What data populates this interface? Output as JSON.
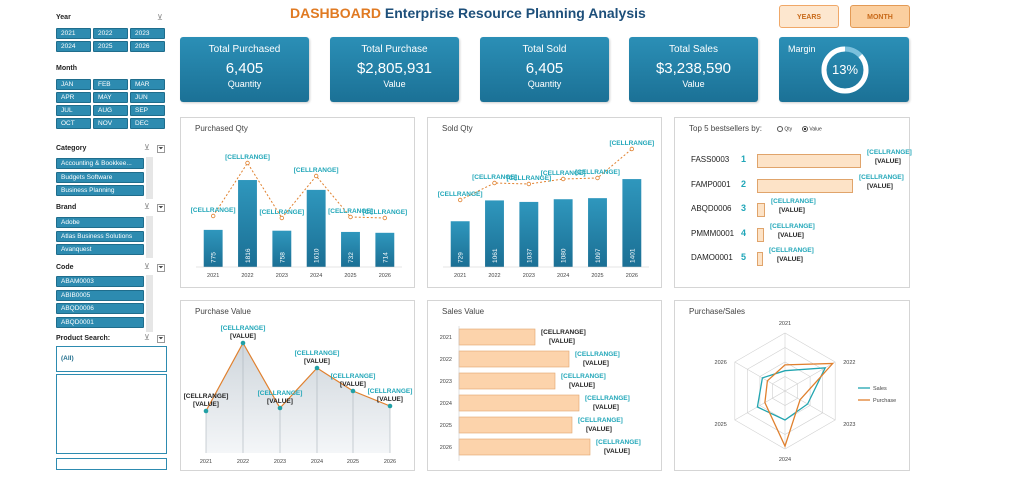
{
  "header": {
    "brand": "DASHBOARD",
    "subtitle": "Enterprise Resource Planning Analysis",
    "years_button": "YEARS",
    "month_button": "MONTH"
  },
  "slicers": {
    "year": {
      "title": "Year",
      "items": [
        "2021",
        "2022",
        "2023",
        "2024",
        "2025",
        "2026"
      ]
    },
    "month": {
      "title": "Month",
      "items": [
        "JAN",
        "FEB",
        "MAR",
        "APR",
        "MAY",
        "JUN",
        "JUL",
        "AUG",
        "SEP",
        "OCT",
        "NOV",
        "DEC"
      ]
    },
    "category": {
      "title": "Category",
      "items": [
        "Accounting & Bookkee...",
        "Budgets Software",
        "Business Planning"
      ]
    },
    "brand": {
      "title": "Brand",
      "items": [
        "Adobe",
        "Atlas Business Solutions",
        "Avanquest"
      ]
    },
    "code": {
      "title": "Code",
      "items": [
        "ABAM0003",
        "ABIB0005",
        "ABQD0006",
        "ABQD0001"
      ]
    },
    "product_search": {
      "title": "Product  Search:",
      "value": "(All)"
    },
    "filter_glyph": "⏷"
  },
  "kpis": [
    {
      "title": "Total Purchased",
      "value": "6,405",
      "unit": "Quantity"
    },
    {
      "title": "Total Purchase",
      "value": "$2,805,931",
      "unit": "Value"
    },
    {
      "title": "Total Sold",
      "value": "6,405",
      "unit": "Quantity"
    },
    {
      "title": "Total Sales",
      "value": "$3,238,590",
      "unit": "Value"
    }
  ],
  "margin": {
    "title": "Margin",
    "value": "13%",
    "fraction": 0.13
  },
  "placeholder": {
    "range": "[CELLRANGE]",
    "value": "[VALUE]"
  },
  "charts": {
    "purchased_qty": {
      "title": "Purchased  Qty",
      "years": [
        "2021",
        "2022",
        "2023",
        "2024",
        "2025",
        "2026"
      ],
      "values": [
        775,
        1816,
        758,
        1610,
        732,
        714
      ]
    },
    "sold_qty": {
      "title": "Sold  Qty",
      "years": [
        "2021",
        "2022",
        "2023",
        "2024",
        "2025",
        "2026"
      ],
      "values": [
        729,
        1061,
        1037,
        1080,
        1097,
        1401
      ]
    },
    "top5": {
      "title": "Top 5 bestsellers by:",
      "radio_qty": "Qty",
      "radio_value": "Value",
      "items": [
        {
          "code": "FASS0003",
          "rank": "1"
        },
        {
          "code": "FAMP0001",
          "rank": "2"
        },
        {
          "code": "ABQD0006",
          "rank": "3"
        },
        {
          "code": "PMMM0001",
          "rank": "4"
        },
        {
          "code": "DAMO0001",
          "rank": "5"
        }
      ]
    },
    "purchase_value": {
      "title": "Purchase Value",
      "years": [
        "2021",
        "2022",
        "2023",
        "2024",
        "2025",
        "2026"
      ]
    },
    "sales_value": {
      "title": "Sales Value",
      "years": [
        "2021",
        "2022",
        "2023",
        "2024",
        "2025",
        "2026"
      ]
    },
    "purchase_sales": {
      "title": "Purchase/Sales",
      "axes": [
        "2021",
        "2022",
        "2023",
        "2024",
        "2025",
        "2026"
      ],
      "legend": [
        "Sales",
        "Purchase"
      ]
    }
  },
  "chart_data": [
    {
      "type": "bar",
      "title": "Purchased  Qty",
      "categories": [
        "2021",
        "2022",
        "2023",
        "2024",
        "2025",
        "2026"
      ],
      "values": [
        775,
        1816,
        758,
        1610,
        732,
        714
      ]
    },
    {
      "type": "bar",
      "title": "Sold  Qty",
      "categories": [
        "2021",
        "2022",
        "2023",
        "2024",
        "2025",
        "2026"
      ],
      "values": [
        729,
        1061,
        1037,
        1080,
        1097,
        1401
      ]
    }
  ],
  "colors": {
    "accent": "#2b8fb6",
    "orange": "#e0802e",
    "peach": "#fcd3ab",
    "cyan": "#1fa6b8"
  }
}
